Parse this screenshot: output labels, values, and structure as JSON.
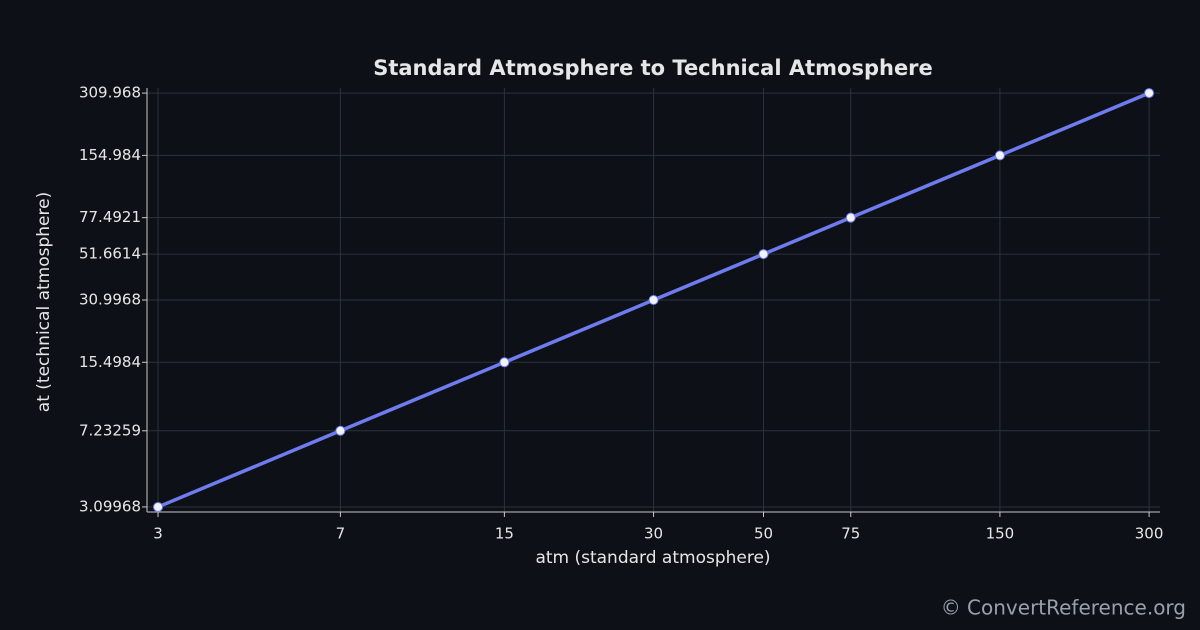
{
  "chart_data": {
    "type": "line",
    "title": "Standard Atmosphere to Technical Atmosphere",
    "xlabel": "atm (standard atmosphere)",
    "ylabel": "at (technical atmosphere)",
    "x": [
      3,
      7,
      15,
      30,
      50,
      75,
      150,
      300
    ],
    "series": [
      {
        "color": "#6f7cf0",
        "values": [
          3.09968,
          7.23259,
          15.4984,
          30.9968,
          51.6614,
          77.4921,
          154.984,
          309.968
        ]
      }
    ],
    "xscale": "log",
    "yscale": "log",
    "xlim": [
      2.85,
      315.6
    ],
    "ylim": [
      2.93,
      328
    ],
    "xticks": [
      3,
      7,
      15,
      30,
      50,
      75,
      150,
      300
    ],
    "yticks": [
      3.09968,
      7.23259,
      15.4984,
      30.9968,
      51.6614,
      77.4921,
      154.984,
      309.968
    ],
    "grid": true,
    "watermark": "© ConvertReference.org"
  }
}
